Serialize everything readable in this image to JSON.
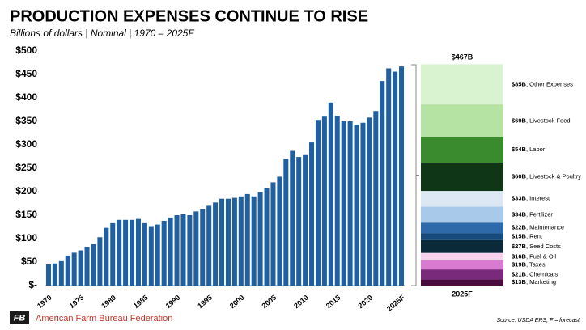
{
  "chart_data": [
    {
      "type": "bar",
      "title": "PRODUCTION EXPENSES CONTINUE TO RISE",
      "subtitle": "Billions of dollars | Nominal | 1970 – 2025F",
      "categories": [
        "1970",
        null,
        null,
        null,
        null,
        "1975",
        null,
        null,
        null,
        null,
        "1980",
        null,
        null,
        null,
        null,
        "1985",
        null,
        null,
        null,
        null,
        "1990",
        null,
        null,
        null,
        null,
        "1995",
        null,
        null,
        null,
        null,
        "2000",
        null,
        null,
        null,
        null,
        "2005",
        null,
        null,
        null,
        null,
        "2010",
        null,
        null,
        null,
        null,
        "2015",
        null,
        null,
        null,
        null,
        "2020",
        null,
        null,
        null,
        null,
        "2025F"
      ],
      "values": [
        45,
        47,
        52,
        64,
        70,
        75,
        82,
        88,
        103,
        123,
        133,
        140,
        140,
        140,
        142,
        133,
        125,
        130,
        138,
        145,
        150,
        152,
        150,
        158,
        163,
        170,
        177,
        185,
        185,
        187,
        190,
        195,
        190,
        199,
        208,
        220,
        232,
        270,
        287,
        274,
        278,
        305,
        353,
        360,
        390,
        362,
        350,
        350,
        343,
        347,
        358,
        372,
        436,
        463,
        456,
        467
      ],
      "color": "#2160a0",
      "ylim": [
        0,
        500
      ],
      "yticks": [
        {
          "value": 0,
          "label": "$-"
        },
        {
          "value": 50,
          "label": "$50"
        },
        {
          "value": 100,
          "label": "$100"
        },
        {
          "value": 150,
          "label": "$150"
        },
        {
          "value": 200,
          "label": "$200"
        },
        {
          "value": 250,
          "label": "$250"
        },
        {
          "value": 300,
          "label": "$300"
        },
        {
          "value": 350,
          "label": "$350"
        },
        {
          "value": 400,
          "label": "$400"
        },
        {
          "value": 450,
          "label": "$450"
        },
        {
          "value": 500,
          "label": "$500"
        }
      ]
    },
    {
      "type": "stacked_bar",
      "categories": [
        "2025F"
      ],
      "total": {
        "value": 467,
        "label": "$467B"
      },
      "series": [
        {
          "name": "Other Expenses",
          "color": "#d9f2d0",
          "values": [
            85
          ],
          "value_labels": [
            "$85B"
          ]
        },
        {
          "name": "Livestock Feed",
          "color": "#b5e3a3",
          "values": [
            69
          ],
          "value_labels": [
            "$69B"
          ]
        },
        {
          "name": "Labor",
          "color": "#3a8a2e",
          "values": [
            54
          ],
          "value_labels": [
            "$54B"
          ]
        },
        {
          "name": "Livestock & Poultry",
          "color": "#0f3617",
          "values": [
            60
          ],
          "value_labels": [
            "$60B"
          ]
        },
        {
          "name": "Interest",
          "color": "#dce9f5",
          "values": [
            33
          ],
          "value_labels": [
            "$33B"
          ]
        },
        {
          "name": "Fertilizer",
          "color": "#a9c9ea",
          "values": [
            34
          ],
          "value_labels": [
            "$34B"
          ]
        },
        {
          "name": "Maintenance",
          "color": "#2e6aaa",
          "values": [
            22
          ],
          "value_labels": [
            "$22B"
          ]
        },
        {
          "name": "Rent",
          "color": "#174a7c",
          "values": [
            15
          ],
          "value_labels": [
            "$15B"
          ]
        },
        {
          "name": "Seed Costs",
          "color": "#0a2a3a",
          "values": [
            27
          ],
          "value_labels": [
            "$27B"
          ]
        },
        {
          "name": "Fuel & Oil",
          "color": "#f5d3ec",
          "values": [
            16
          ],
          "value_labels": [
            "$16B"
          ]
        },
        {
          "name": "Taxes",
          "color": "#d77ad0",
          "values": [
            19
          ],
          "value_labels": [
            "$19B"
          ]
        },
        {
          "name": "Chemicals",
          "color": "#7a2a7a",
          "values": [
            21
          ],
          "value_labels": [
            "$21B"
          ]
        },
        {
          "name": "Marketing",
          "color": "#4a0c3f",
          "values": [
            13
          ],
          "value_labels": [
            "$13B"
          ]
        }
      ]
    }
  ],
  "footer": {
    "organization": "American Farm Bureau Federation",
    "source": "Source: USDA ERS; F = forecast"
  }
}
